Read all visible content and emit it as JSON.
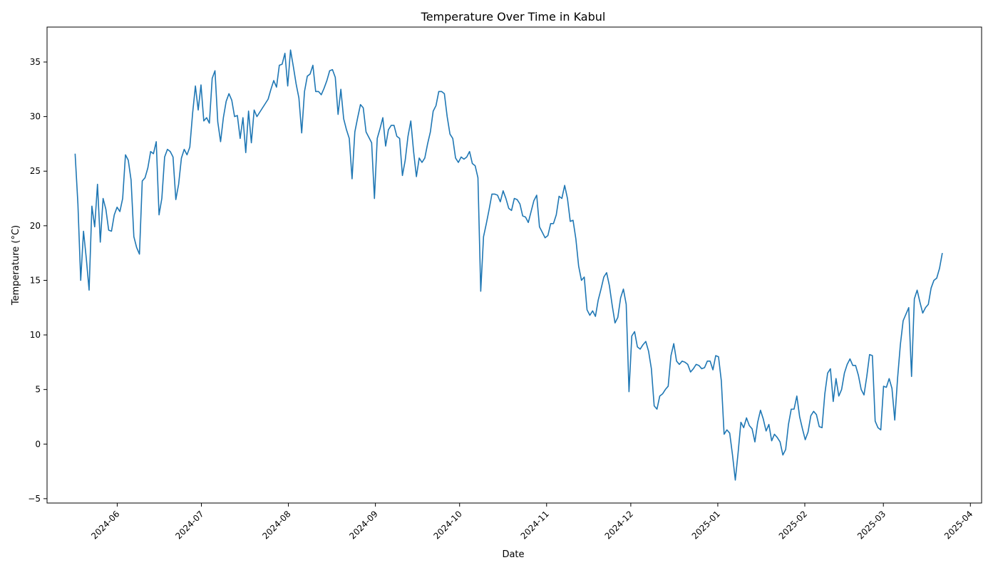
{
  "chart_data": {
    "type": "line",
    "title": "Temperature Over Time in Kabul",
    "xlabel": "Date",
    "ylabel": "Temperature (°C)",
    "xlim": [
      "2024-05-07",
      "2025-04-05"
    ],
    "ylim": [
      -5.4,
      38.2
    ],
    "grid": false,
    "color": "#1f77b4",
    "x_ticks": [
      "2024-06",
      "2024-07",
      "2024-08",
      "2024-09",
      "2024-10",
      "2024-11",
      "2024-12",
      "2025-01",
      "2025-02",
      "2025-03",
      "2025-04"
    ],
    "y_ticks": [
      "−5",
      "0",
      "5",
      "10",
      "15",
      "20",
      "25",
      "30",
      "35"
    ],
    "start_date": "2024-05-17",
    "end_date": "2025-03-22",
    "series": [
      {
        "name": "",
        "values": [
          26.6,
          22.0,
          15.0,
          19.5,
          17.0,
          14.1,
          21.8,
          19.9,
          23.8,
          18.5,
          22.5,
          21.5,
          19.6,
          19.5,
          21.0,
          21.7,
          21.3,
          22.5,
          26.5,
          26.0,
          24.2,
          19.0,
          18.0,
          17.4,
          24.1,
          24.4,
          25.3,
          26.8,
          26.6,
          27.7,
          21.0,
          22.5,
          26.3,
          27.0,
          26.8,
          26.3,
          22.4,
          23.8,
          26.2,
          27.0,
          26.5,
          27.2,
          30.3,
          32.8,
          30.6,
          32.9,
          29.6,
          29.9,
          29.4,
          33.5,
          34.2,
          29.5,
          27.7,
          29.9,
          31.4,
          32.1,
          31.5,
          30.0,
          30.1,
          28.0,
          29.9,
          26.7,
          30.5,
          27.6,
          30.6,
          30.0,
          30.4,
          30.8,
          31.2,
          31.6,
          32.5,
          33.3,
          32.7,
          34.7,
          34.8,
          35.8,
          32.8,
          36.1,
          34.6,
          33.0,
          31.7,
          28.5,
          32.3,
          33.7,
          33.9,
          34.7,
          32.3,
          32.3,
          32.0,
          32.6,
          33.3,
          34.2,
          34.3,
          33.6,
          30.2,
          32.5,
          29.8,
          28.8,
          28.0,
          24.3,
          28.6,
          29.9,
          31.1,
          30.8,
          28.6,
          28.1,
          27.6,
          22.5,
          28.0,
          28.9,
          29.9,
          27.3,
          28.8,
          29.2,
          29.2,
          28.2,
          28.0,
          24.6,
          26.0,
          28.2,
          29.6,
          26.8,
          24.5,
          26.2,
          25.8,
          26.2,
          27.5,
          28.6,
          30.5,
          31.0,
          32.3,
          32.3,
          32.1,
          30.0,
          28.4,
          28.0,
          26.2,
          25.8,
          26.3,
          26.1,
          26.3,
          26.8,
          25.7,
          25.5,
          24.4,
          14.0,
          19.0,
          20.2,
          21.5,
          22.9,
          22.9,
          22.8,
          22.2,
          23.2,
          22.5,
          21.6,
          21.4,
          22.5,
          22.4,
          22.0,
          20.9,
          20.8,
          20.3,
          21.3,
          22.3,
          22.8,
          19.9,
          19.4,
          18.9,
          19.1,
          20.2,
          20.2,
          21.0,
          22.7,
          22.5,
          23.7,
          22.5,
          20.4,
          20.5,
          18.8,
          16.3,
          15.0,
          15.3,
          12.3,
          11.8,
          12.2,
          11.7,
          13.2,
          14.2,
          15.3,
          15.7,
          14.5,
          12.7,
          11.1,
          11.6,
          13.4,
          14.2,
          12.8,
          4.8,
          9.9,
          10.3,
          8.9,
          8.7,
          9.1,
          9.4,
          8.5,
          6.9,
          3.5,
          3.2,
          4.4,
          4.6,
          5.0,
          5.3,
          8.1,
          9.2,
          7.6,
          7.3,
          7.6,
          7.5,
          7.3,
          6.6,
          6.9,
          7.3,
          7.2,
          6.9,
          7.0,
          7.6,
          7.6,
          6.8,
          8.1,
          8.0,
          5.8,
          0.9,
          1.3,
          1.0,
          -1.0,
          -3.3,
          -0.8,
          2.0,
          1.5,
          2.4,
          1.7,
          1.4,
          0.2,
          2.0,
          3.1,
          2.3,
          1.2,
          1.8,
          0.3,
          0.9,
          0.6,
          0.2,
          -1.0,
          -0.5,
          1.8,
          3.2,
          3.2,
          4.4,
          2.5,
          1.4,
          0.4,
          1.1,
          2.6,
          3.0,
          2.7,
          1.6,
          1.5,
          4.6,
          6.5,
          6.9,
          3.9,
          6.0,
          4.4,
          5.0,
          6.5,
          7.3,
          7.8,
          7.2,
          7.2,
          6.3,
          5.0,
          4.5,
          6.2,
          8.2,
          8.1,
          2.1,
          1.5,
          1.3,
          5.3,
          5.2,
          6.0,
          5.1,
          2.2,
          6.0,
          9.1,
          11.3,
          11.9,
          12.5,
          6.2,
          13.3,
          14.1,
          13.0,
          12.0,
          12.5,
          12.8,
          14.3,
          15.0,
          15.2,
          16.1,
          17.5
        ]
      }
    ]
  }
}
